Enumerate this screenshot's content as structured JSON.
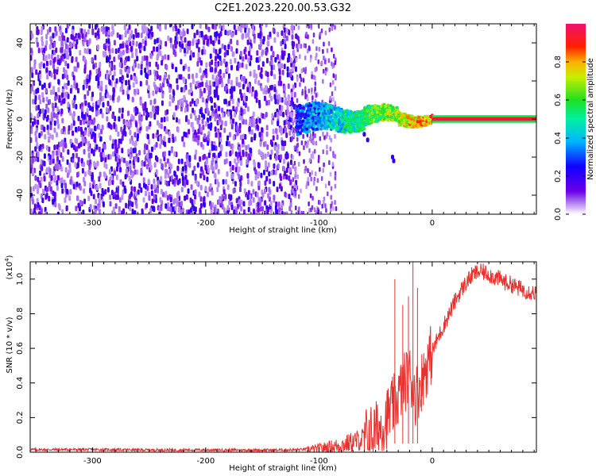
{
  "title": "C2E1.2023.220.00.53.G32",
  "chart_data": [
    {
      "type": "heatmap",
      "xlabel": "Height of straight line (km)",
      "ylabel": "Frequency (Hz)",
      "xlim": [
        -355,
        92
      ],
      "ylim": [
        -50,
        50
      ],
      "xticks": [
        -300,
        -200,
        -100,
        0
      ],
      "yticks": [
        -40,
        -20,
        0,
        20,
        40
      ],
      "colorbar": {
        "label": "Normalized spectral amplitude",
        "range": [
          0,
          1
        ],
        "ticks": [
          "0.0",
          "0.2",
          "0.4",
          "0.6",
          "0.8"
        ],
        "colormap": "rainbow (violet-blue-cyan-green-yellow-red-magenta)"
      },
      "regions": [
        {
          "x_from": -355,
          "x_to": -120,
          "frequency_spread_hz": [
            -50,
            50
          ],
          "amplitude": "low (0.05-0.2), noise"
        },
        {
          "x_from": -120,
          "x_to": -85,
          "frequency_spread_hz": [
            -8,
            8
          ],
          "amplitude": "0.15-0.4, sparse streaks to ±50"
        },
        {
          "x_from": -85,
          "x_to": 0,
          "frequency_spread_hz": [
            -5,
            7
          ],
          "amplitude": "0.4-0.8, band narrowing toward 0 km"
        },
        {
          "x_from": 0,
          "x_to": 92,
          "frequency_spread_hz": [
            -1,
            1
          ],
          "amplitude": "≈1.0, narrow line at 0 Hz"
        }
      ]
    },
    {
      "type": "line",
      "xlabel": "Height of straight line (km)",
      "ylabel": "SNR (10 * v/v)",
      "ylabel_multiplier": "(x10",
      "ylabel_multiplier_exp": "4",
      "ylabel_multiplier_close": ")",
      "xlim": [
        -355,
        92
      ],
      "ylim": [
        0,
        1.1
      ],
      "xticks": [
        -300,
        -200,
        -100,
        0
      ],
      "yticks": [
        "0.0",
        "0.2",
        "0.4",
        "0.6",
        "0.8",
        "1.0"
      ],
      "series": [
        {
          "color": "#e8302c",
          "x": [
            -355,
            -300,
            -250,
            -200,
            -150,
            -120,
            -100,
            -90,
            -80,
            -70,
            -60,
            -50,
            -45,
            -40,
            -35,
            -30,
            -25,
            -20,
            -15,
            -10,
            -5,
            0,
            5,
            10,
            15,
            20,
            25,
            30,
            35,
            40,
            45,
            50,
            55,
            60,
            65,
            70,
            75,
            80,
            85,
            92
          ],
          "y": [
            0.015,
            0.015,
            0.013,
            0.013,
            0.012,
            0.014,
            0.02,
            0.03,
            0.04,
            0.06,
            0.08,
            0.12,
            0.15,
            0.2,
            0.26,
            0.32,
            0.4,
            0.45,
            0.33,
            0.4,
            0.5,
            0.58,
            0.66,
            0.73,
            0.8,
            0.87,
            0.93,
            0.98,
            1.02,
            1.04,
            1.04,
            1.03,
            1.01,
            1.0,
            0.98,
            0.97,
            0.95,
            0.94,
            0.93,
            0.92
          ],
          "spikes": [
            {
              "x": -33,
              "y": 1.0
            },
            {
              "x": -26,
              "y": 0.85
            },
            {
              "x": -21,
              "y": 0.9
            },
            {
              "x": -17,
              "y": 1.1
            },
            {
              "x": -13,
              "y": 0.95
            }
          ]
        }
      ]
    }
  ]
}
